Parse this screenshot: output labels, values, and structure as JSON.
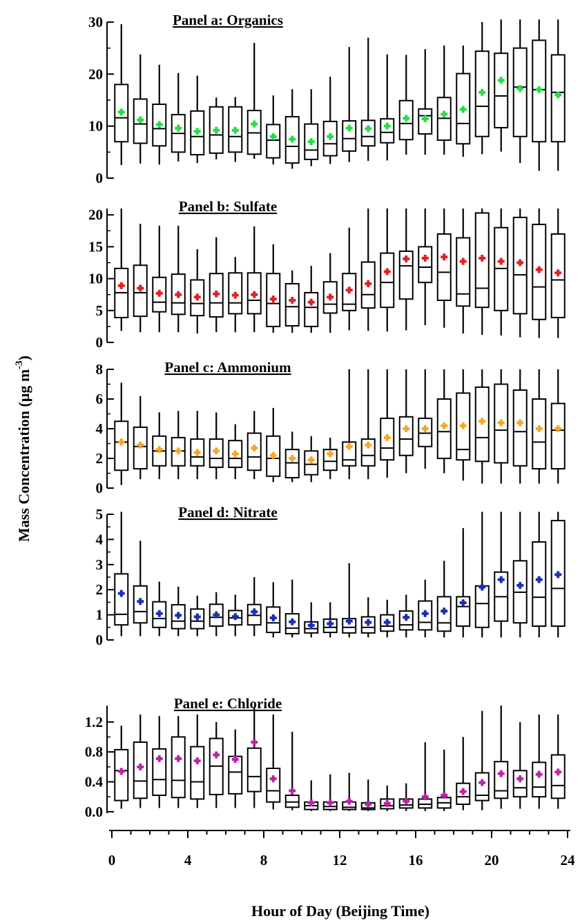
{
  "chart_data": {
    "type": "box",
    "ylabel": "Mass Concentration (μg m",
    "ylabel_superscript": "-3",
    "ylabel_suffix": ")",
    "xlabel": "Hour of Day (Beijing Time)",
    "x_ticks": [
      "0",
      "4",
      "8",
      "12",
      "16",
      "20",
      "24"
    ],
    "xlim": [
      0,
      24
    ],
    "hours": [
      0.5,
      1.5,
      2.5,
      3.5,
      4.5,
      5.5,
      6.5,
      7.5,
      8.5,
      9.5,
      10.5,
      11.5,
      12.5,
      13.5,
      14.5,
      15.5,
      16.5,
      17.5,
      18.5,
      19.5,
      20.5,
      21.5,
      22.5,
      23.5
    ],
    "panels": [
      {
        "title": "Panel a: Organics",
        "mean_color": "#22dd44",
        "ylim": [
          0,
          30
        ],
        "y_ticks": [
          "0",
          "10",
          "20",
          "30"
        ],
        "y_tick_values": [
          0,
          10,
          20,
          30
        ],
        "whisker_low": [
          2.5,
          2.8,
          2.6,
          3.2,
          2.9,
          3.6,
          3.1,
          3.7,
          2.6,
          1.8,
          2.3,
          2.7,
          3.1,
          3.3,
          3.4,
          4.5,
          4.5,
          4.5,
          4.1,
          4.6,
          5.1,
          2.9,
          1.4,
          1.4
        ],
        "q1": [
          7,
          6.7,
          6.2,
          5,
          4.5,
          4.8,
          5,
          4.6,
          3.9,
          2.9,
          3.6,
          4.3,
          5.2,
          6.2,
          6.8,
          7.4,
          8.5,
          7.3,
          6.6,
          8,
          9.7,
          8,
          7,
          7
        ],
        "median": [
          11.6,
          10.4,
          9.5,
          8.6,
          8,
          8.3,
          8,
          8.7,
          7.3,
          6.1,
          5.4,
          6.6,
          7.6,
          8,
          8.8,
          10.5,
          12,
          11.5,
          10.5,
          13.8,
          15.8,
          17.5,
          17,
          16.5
        ],
        "q3": [
          18,
          15.2,
          14.2,
          12.2,
          12.9,
          13.7,
          13.7,
          13,
          10.3,
          11.8,
          10.4,
          10.9,
          11,
          11.1,
          11.4,
          14.9,
          13.3,
          15.5,
          20.1,
          24.4,
          24,
          25,
          26.5,
          23.7
        ],
        "whisker_high": [
          29.6,
          23.8,
          21.8,
          20.2,
          19.7,
          15.5,
          15.6,
          26,
          15.9,
          17.1,
          17.1,
          19.5,
          25.2,
          27,
          23.8,
          23.7,
          24.8,
          25.5,
          25.5,
          30,
          30.5,
          30.5,
          30.5,
          30.5
        ],
        "mean": [
          12.7,
          11.2,
          10.3,
          9.6,
          9,
          9.2,
          9.2,
          10.4,
          8,
          7.5,
          7,
          8,
          9.6,
          9.5,
          10,
          11.5,
          11.4,
          12.3,
          13.2,
          16.5,
          18.8,
          17.2,
          17,
          16
        ]
      },
      {
        "title": "Panel b: Sulfate",
        "mean_color": "#dd2222",
        "ylim": [
          0,
          21
        ],
        "y_ticks": [
          "0",
          "5",
          "10",
          "15",
          "20"
        ],
        "y_tick_values": [
          0,
          5,
          10,
          15,
          20
        ],
        "whisker_low": [
          1.8,
          1.6,
          1.6,
          1.6,
          1.4,
          1.6,
          1.6,
          1.6,
          1.5,
          1.5,
          1.5,
          1.5,
          1.9,
          1.8,
          1.7,
          1.9,
          2.7,
          2.3,
          1.4,
          1.2,
          1.1,
          0.8,
          0.7,
          0.7
        ],
        "q1": [
          3.9,
          4.1,
          4.8,
          4.4,
          4.2,
          4,
          4.5,
          4.5,
          2.5,
          2.6,
          2.5,
          4.6,
          5,
          5.4,
          5.5,
          6.8,
          9.4,
          6.6,
          5.7,
          5.5,
          5,
          4.5,
          3.6,
          3.9
        ],
        "median": [
          7.8,
          7.8,
          6.3,
          6.2,
          6.1,
          6.2,
          6.2,
          6.6,
          6.1,
          5.6,
          5.5,
          6,
          6,
          7.5,
          9.4,
          12,
          11.8,
          11,
          7.6,
          8.5,
          11.6,
          10.6,
          8.7,
          9.8
        ],
        "q3": [
          11.6,
          12.1,
          10.2,
          10.7,
          9.8,
          10.8,
          10.9,
          10.9,
          10.8,
          9.2,
          7.8,
          9.5,
          10.8,
          12.6,
          14,
          14.3,
          15,
          17,
          16.4,
          20.3,
          18,
          19.6,
          18.5,
          17
        ],
        "whisker_high": [
          21,
          18.6,
          18.3,
          18.3,
          14.6,
          16.5,
          13.4,
          18.2,
          15.4,
          11.3,
          12,
          14,
          18,
          21,
          21,
          21,
          21,
          21,
          21,
          21,
          21,
          21,
          21,
          21
        ],
        "mean": [
          8.9,
          8.5,
          7.7,
          7.5,
          7.1,
          7.6,
          7.4,
          7.5,
          6.8,
          6.6,
          6.3,
          7.1,
          8.2,
          9.2,
          11.1,
          13.1,
          13.2,
          13.4,
          12.7,
          13.2,
          12.7,
          12.5,
          11.4,
          10.9
        ]
      },
      {
        "title": "Panel c: Ammonium",
        "mean_color": "#f5a623",
        "ylim": [
          0,
          8
        ],
        "y_ticks": [
          "0",
          "2",
          "4",
          "6",
          "8"
        ],
        "y_tick_values": [
          0,
          2,
          4,
          6,
          8
        ],
        "whisker_low": [
          0.2,
          0.6,
          0.6,
          0.6,
          0.6,
          0.6,
          0.6,
          0.6,
          0.4,
          0.4,
          0.4,
          0.6,
          0.6,
          0.6,
          0.7,
          1,
          1.3,
          1,
          0.5,
          0.3,
          0.3,
          0.3,
          0.3,
          0.3
        ],
        "q1": [
          1.2,
          1.3,
          1.5,
          1.5,
          1.5,
          1.4,
          1.4,
          1.2,
          0.8,
          0.7,
          0.9,
          1.2,
          1.5,
          1.5,
          1.9,
          2.2,
          2.8,
          2,
          1.9,
          1.8,
          1.7,
          1.5,
          1.3,
          1.3
        ],
        "median": [
          3.1,
          2.8,
          2.5,
          2.5,
          2.1,
          2,
          2,
          2.1,
          2,
          1.7,
          1.6,
          1.8,
          1.9,
          2.2,
          2.7,
          3.3,
          3.7,
          3.8,
          2.6,
          3.4,
          3.9,
          3.8,
          3.1,
          3.9
        ],
        "q3": [
          4.5,
          4.1,
          3.5,
          3.4,
          3.3,
          3.3,
          3.2,
          3.7,
          3.5,
          2.6,
          2.5,
          2.6,
          3.1,
          3.3,
          4.7,
          4.8,
          4.7,
          6,
          6.4,
          6.8,
          7,
          6.6,
          6,
          5.7
        ],
        "whisker_high": [
          7.1,
          6.2,
          5.1,
          5.2,
          5.2,
          5.1,
          4.3,
          5.2,
          5.4,
          3.8,
          3.5,
          3.4,
          8,
          8,
          8,
          8,
          8,
          8,
          8,
          8,
          8,
          8,
          8,
          8
        ],
        "mean": [
          3.1,
          2.9,
          2.6,
          2.5,
          2.4,
          2.5,
          2.3,
          2.7,
          2.2,
          2,
          1.9,
          2.3,
          2.8,
          2.9,
          3.4,
          4,
          4,
          4.2,
          4.2,
          4.5,
          4.4,
          4.4,
          4,
          4
        ]
      },
      {
        "title": "Panel d: Nitrate",
        "mean_color": "#1a2eb0",
        "ylim": [
          0,
          5
        ],
        "y_ticks": [
          "0",
          "1",
          "2",
          "3",
          "4",
          "5"
        ],
        "y_tick_values": [
          0,
          1,
          2,
          3,
          4,
          5
        ],
        "whisker_low": [
          0.15,
          0.15,
          0.15,
          0.15,
          0.15,
          0.15,
          0.15,
          0.15,
          0.1,
          0.1,
          0.1,
          0.1,
          0.1,
          0.1,
          0.1,
          0.1,
          0.1,
          0.1,
          0.1,
          0.1,
          0.1,
          0.1,
          0.1,
          0.1
        ],
        "q1": [
          0.6,
          0.68,
          0.5,
          0.45,
          0.45,
          0.55,
          0.6,
          0.6,
          0.3,
          0.25,
          0.28,
          0.3,
          0.28,
          0.28,
          0.35,
          0.4,
          0.4,
          0.35,
          0.55,
          0.5,
          0.75,
          0.68,
          0.55,
          0.55
        ],
        "median": [
          1.02,
          1.13,
          0.85,
          0.75,
          0.75,
          0.9,
          0.88,
          0.98,
          0.68,
          0.47,
          0.45,
          0.5,
          0.5,
          0.5,
          0.55,
          0.6,
          0.7,
          0.68,
          1.33,
          1.45,
          1.72,
          1.9,
          1.7,
          2.05
        ],
        "q3": [
          2.63,
          2.15,
          1.52,
          1.4,
          1.23,
          1.42,
          1.17,
          1.41,
          1.31,
          1.04,
          0.72,
          0.83,
          0.85,
          0.92,
          1.0,
          1.15,
          1.55,
          1.72,
          1.72,
          2.15,
          2.7,
          3.15,
          3.9,
          4.75
        ],
        "whisker_high": [
          5.1,
          3.95,
          2.32,
          2.12,
          1.76,
          1.9,
          1.8,
          2.5,
          2.3,
          2.4,
          1.5,
          1.5,
          3.05,
          1.7,
          1.6,
          1.8,
          2.4,
          3.15,
          4.45,
          5.1,
          5.1,
          5.1,
          5.1,
          5.1
        ],
        "mean": [
          1.85,
          1.53,
          1.05,
          0.98,
          0.92,
          1.0,
          0.93,
          1.12,
          0.88,
          0.72,
          0.58,
          0.65,
          0.75,
          0.7,
          0.7,
          0.9,
          1.05,
          1.15,
          1.48,
          2.1,
          2.4,
          2.17,
          2.4,
          2.6
        ]
      },
      {
        "title": "Panel e: Chloride",
        "mean_color": "#bb22aa",
        "ylim": [
          -0.02,
          1.42
        ],
        "y_ticks": [
          "0.0",
          "0.4",
          "0.8",
          "1.2"
        ],
        "y_tick_values": [
          0,
          0.4,
          0.8,
          1.2
        ],
        "whisker_low": [
          0.04,
          0.05,
          0.05,
          0.05,
          0.05,
          0.05,
          0.05,
          0.05,
          0.03,
          0.02,
          0.01,
          0.01,
          0.01,
          0.01,
          0.01,
          0.01,
          0.01,
          0.01,
          0.02,
          0.02,
          0.04,
          0.04,
          0.04,
          0.04
        ],
        "q1": [
          0.15,
          0.18,
          0.22,
          0.19,
          0.17,
          0.23,
          0.24,
          0.27,
          0.13,
          0.06,
          0.03,
          0.03,
          0.03,
          0.03,
          0.04,
          0.05,
          0.05,
          0.05,
          0.1,
          0.15,
          0.18,
          0.2,
          0.2,
          0.18
        ],
        "median": [
          0.55,
          0.41,
          0.43,
          0.42,
          0.4,
          0.61,
          0.53,
          0.47,
          0.28,
          0.13,
          0.08,
          0.07,
          0.06,
          0.05,
          0.08,
          0.09,
          0.1,
          0.12,
          0.2,
          0.22,
          0.28,
          0.32,
          0.33,
          0.35
        ],
        "q3": [
          0.83,
          0.93,
          0.84,
          1.0,
          0.87,
          0.98,
          0.74,
          0.85,
          0.58,
          0.22,
          0.13,
          0.13,
          0.13,
          0.12,
          0.17,
          0.17,
          0.17,
          0.19,
          0.38,
          0.52,
          0.67,
          0.55,
          0.66,
          0.76
        ],
        "whisker_high": [
          1.15,
          1.3,
          1.28,
          1.28,
          1.3,
          1.2,
          1.1,
          1.4,
          1.3,
          1.07,
          0.42,
          0.5,
          0.52,
          0.43,
          0.35,
          0.38,
          0.93,
          0.83,
          1.0,
          1.35,
          1.42,
          1.2,
          1.3,
          1.3
        ],
        "mean": [
          0.54,
          0.6,
          0.71,
          0.71,
          0.68,
          0.76,
          0.7,
          0.93,
          0.44,
          0.28,
          0.12,
          0.12,
          0.14,
          0.1,
          0.11,
          0.14,
          0.2,
          0.22,
          0.27,
          0.39,
          0.51,
          0.44,
          0.5,
          0.53
        ]
      }
    ]
  }
}
